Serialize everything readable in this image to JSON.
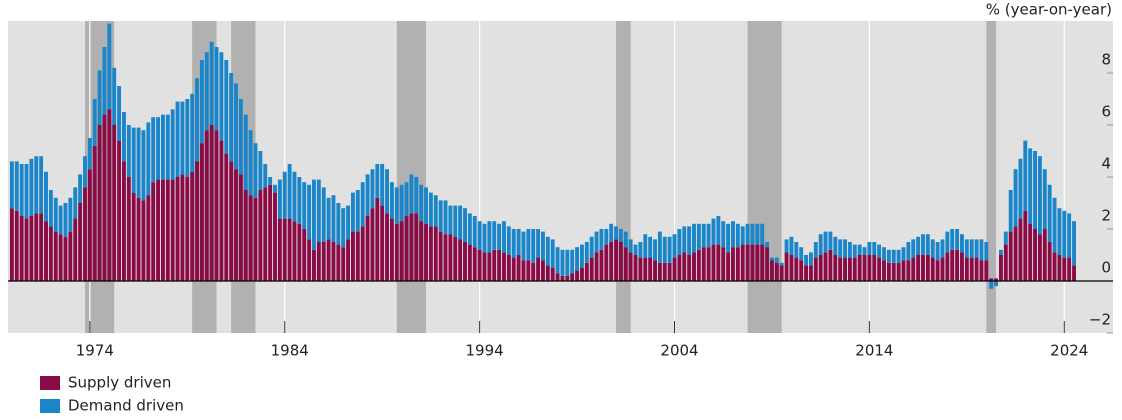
{
  "chart_data": {
    "type": "bar",
    "stacked": true,
    "y_label": "% (year-on-year)",
    "xlim": [
      1969.8,
      2026.5
    ],
    "xticks": [
      1974,
      1984,
      1994,
      2004,
      2014,
      2024
    ],
    "ylim": [
      -2,
      10
    ],
    "yticks": [
      {
        "value": -2,
        "label": "−2"
      },
      0,
      2,
      4,
      6,
      8
    ],
    "grid": true,
    "legend": "bottom-left",
    "shading_color": "#b1b1b1",
    "shading": [
      [
        1973.75,
        1975.25
      ],
      [
        1979.25,
        1980.5
      ],
      [
        1981.25,
        1982.5
      ],
      [
        1989.75,
        1991.25
      ],
      [
        2001.0,
        2001.75
      ],
      [
        2007.75,
        2009.5
      ],
      [
        2020.0,
        2020.5
      ]
    ],
    "x": [
      1970,
      1970.25,
      1970.5,
      1970.75,
      1971,
      1971.25,
      1971.5,
      1971.75,
      1972,
      1972.25,
      1972.5,
      1972.75,
      1973,
      1973.25,
      1973.5,
      1973.75,
      1974,
      1974.25,
      1974.5,
      1974.75,
      1975,
      1975.25,
      1975.5,
      1975.75,
      1976,
      1976.25,
      1976.5,
      1976.75,
      1977,
      1977.25,
      1977.5,
      1977.75,
      1978,
      1978.25,
      1978.5,
      1978.75,
      1979,
      1979.25,
      1979.5,
      1979.75,
      1980,
      1980.25,
      1980.5,
      1980.75,
      1981,
      1981.25,
      1981.5,
      1981.75,
      1982,
      1982.25,
      1982.5,
      1982.75,
      1983,
      1983.25,
      1983.5,
      1983.75,
      1984,
      1984.25,
      1984.5,
      1984.75,
      1985,
      1985.25,
      1985.5,
      1985.75,
      1986,
      1986.25,
      1986.5,
      1986.75,
      1987,
      1987.25,
      1987.5,
      1987.75,
      1988,
      1988.25,
      1988.5,
      1988.75,
      1989,
      1989.25,
      1989.5,
      1989.75,
      1990,
      1990.25,
      1990.5,
      1990.75,
      1991,
      1991.25,
      1991.5,
      1991.75,
      1992,
      1992.25,
      1992.5,
      1992.75,
      1993,
      1993.25,
      1993.5,
      1993.75,
      1994,
      1994.25,
      1994.5,
      1994.75,
      1995,
      1995.25,
      1995.5,
      1995.75,
      1996,
      1996.25,
      1996.5,
      1996.75,
      1997,
      1997.25,
      1997.5,
      1997.75,
      1998,
      1998.25,
      1998.5,
      1998.75,
      1999,
      1999.25,
      1999.5,
      1999.75,
      2000,
      2000.25,
      2000.5,
      2000.75,
      2001,
      2001.25,
      2001.5,
      2001.75,
      2002,
      2002.25,
      2002.5,
      2002.75,
      2003,
      2003.25,
      2003.5,
      2003.75,
      2004,
      2004.25,
      2004.5,
      2004.75,
      2005,
      2005.25,
      2005.5,
      2005.75,
      2006,
      2006.25,
      2006.5,
      2006.75,
      2007,
      2007.25,
      2007.5,
      2007.75,
      2008,
      2008.25,
      2008.5,
      2008.75,
      2009,
      2009.25,
      2009.5,
      2009.75,
      2010,
      2010.25,
      2010.5,
      2010.75,
      2011,
      2011.25,
      2011.5,
      2011.75,
      2012,
      2012.25,
      2012.5,
      2012.75,
      2013,
      2013.25,
      2013.5,
      2013.75,
      2014,
      2014.25,
      2014.5,
      2014.75,
      2015,
      2015.25,
      2015.5,
      2015.75,
      2016,
      2016.25,
      2016.5,
      2016.75,
      2017,
      2017.25,
      2017.5,
      2017.75,
      2018,
      2018.25,
      2018.5,
      2018.75,
      2019,
      2019.25,
      2019.5,
      2019.75,
      2020,
      2020.25,
      2020.5,
      2020.75,
      2021,
      2021.25,
      2021.5,
      2021.75,
      2022,
      2022.25,
      2022.5,
      2022.75,
      2023,
      2023.25,
      2023.5,
      2023.75,
      2024,
      2024.25,
      2024.5
    ],
    "series": [
      {
        "name": "Supply driven",
        "color": "#8a0b45",
        "values": [
          2.8,
          2.7,
          2.5,
          2.4,
          2.5,
          2.6,
          2.6,
          2.3,
          2.1,
          1.9,
          1.8,
          1.7,
          1.9,
          2.4,
          3.0,
          3.6,
          4.3,
          5.2,
          6.0,
          6.4,
          6.6,
          6.0,
          5.4,
          4.6,
          4.0,
          3.4,
          3.2,
          3.1,
          3.3,
          3.8,
          3.9,
          3.9,
          3.9,
          3.9,
          4.0,
          4.1,
          4.0,
          4.2,
          4.6,
          5.3,
          5.8,
          6.0,
          5.8,
          5.4,
          4.9,
          4.6,
          4.3,
          4.1,
          3.5,
          3.3,
          3.2,
          3.5,
          3.6,
          3.7,
          3.4,
          2.4,
          2.4,
          2.4,
          2.3,
          2.2,
          2.0,
          1.6,
          1.2,
          1.5,
          1.5,
          1.6,
          1.5,
          1.4,
          1.3,
          1.6,
          1.9,
          1.9,
          2.1,
          2.5,
          2.8,
          3.2,
          2.9,
          2.6,
          2.4,
          2.2,
          2.3,
          2.5,
          2.6,
          2.6,
          2.3,
          2.2,
          2.1,
          2.1,
          1.9,
          1.8,
          1.8,
          1.7,
          1.6,
          1.5,
          1.4,
          1.3,
          1.2,
          1.1,
          1.1,
          1.2,
          1.2,
          1.1,
          1.0,
          0.9,
          1.0,
          0.8,
          0.8,
          0.7,
          0.9,
          0.8,
          0.6,
          0.5,
          0.3,
          0.2,
          0.2,
          0.3,
          0.4,
          0.5,
          0.7,
          0.9,
          1.1,
          1.2,
          1.4,
          1.5,
          1.6,
          1.5,
          1.3,
          1.1,
          1.0,
          0.9,
          0.9,
          0.9,
          0.8,
          0.7,
          0.7,
          0.7,
          0.9,
          1.0,
          1.1,
          1.0,
          1.1,
          1.2,
          1.3,
          1.3,
          1.4,
          1.4,
          1.3,
          1.1,
          1.3,
          1.3,
          1.4,
          1.4,
          1.4,
          1.4,
          1.4,
          1.3,
          0.8,
          0.7,
          0.6,
          1.1,
          1.0,
          0.9,
          0.8,
          0.6,
          0.6,
          0.9,
          1.0,
          1.1,
          1.2,
          1.0,
          0.9,
          0.9,
          0.9,
          0.9,
          1.0,
          1.0,
          1.0,
          1.0,
          0.9,
          0.8,
          0.7,
          0.7,
          0.7,
          0.8,
          0.8,
          0.9,
          1.0,
          1.0,
          1.0,
          0.9,
          0.8,
          0.9,
          1.1,
          1.2,
          1.2,
          1.1,
          0.9,
          0.9,
          0.9,
          0.8,
          0.8,
          0.1,
          0.1,
          1.0,
          1.4,
          1.9,
          2.1,
          2.4,
          2.7,
          2.2,
          2.0,
          1.8,
          2.0,
          1.5,
          1.1,
          1.0,
          0.9,
          0.9,
          0.6
        ]
      },
      {
        "name": "Demand driven",
        "color": "#1a86c9",
        "values": [
          1.8,
          1.9,
          2.0,
          2.1,
          2.2,
          2.2,
          2.2,
          1.9,
          1.4,
          1.3,
          1.1,
          1.3,
          1.3,
          1.2,
          1.1,
          1.2,
          1.2,
          1.8,
          2.1,
          2.6,
          3.3,
          2.2,
          2.1,
          1.9,
          2.0,
          2.5,
          2.7,
          2.7,
          2.8,
          2.5,
          2.4,
          2.5,
          2.5,
          2.7,
          2.9,
          2.8,
          3.0,
          3.0,
          3.2,
          3.2,
          3.0,
          3.2,
          3.2,
          3.4,
          3.6,
          3.4,
          3.3,
          2.9,
          2.9,
          2.5,
          2.1,
          1.5,
          0.9,
          0.3,
          0.3,
          1.5,
          1.8,
          2.1,
          1.9,
          1.8,
          1.8,
          2.1,
          2.7,
          2.4,
          2.1,
          1.6,
          1.8,
          1.6,
          1.5,
          1.3,
          1.5,
          1.6,
          1.7,
          1.6,
          1.5,
          1.3,
          1.6,
          1.7,
          1.4,
          1.4,
          1.4,
          1.3,
          1.5,
          1.4,
          1.4,
          1.4,
          1.3,
          1.2,
          1.2,
          1.3,
          1.1,
          1.2,
          1.3,
          1.3,
          1.2,
          1.2,
          1.1,
          1.1,
          1.2,
          1.1,
          1.0,
          1.2,
          1.1,
          1.1,
          1.0,
          1.1,
          1.2,
          1.3,
          1.1,
          1.1,
          1.1,
          1.1,
          1.0,
          1.0,
          1.0,
          0.9,
          0.9,
          0.9,
          0.8,
          0.8,
          0.8,
          0.8,
          0.6,
          0.7,
          0.5,
          0.5,
          0.6,
          0.5,
          0.4,
          0.6,
          0.9,
          0.8,
          0.8,
          1.2,
          1.0,
          1.0,
          0.9,
          1.0,
          1.0,
          1.1,
          1.1,
          1.0,
          0.9,
          0.9,
          1.0,
          1.1,
          1.0,
          1.1,
          1.0,
          0.9,
          0.7,
          0.8,
          0.8,
          0.8,
          0.8,
          0.2,
          0.1,
          0.2,
          0.1,
          0.5,
          0.7,
          0.6,
          0.5,
          0.4,
          0.5,
          0.6,
          0.8,
          0.8,
          0.7,
          0.7,
          0.7,
          0.7,
          0.6,
          0.5,
          0.4,
          0.3,
          0.5,
          0.5,
          0.5,
          0.5,
          0.5,
          0.5,
          0.5,
          0.5,
          0.7,
          0.7,
          0.7,
          0.8,
          0.8,
          0.7,
          0.7,
          0.7,
          0.8,
          0.8,
          0.8,
          0.7,
          0.7,
          0.7,
          0.7,
          0.8,
          0.7,
          -0.3,
          -0.2,
          0.2,
          0.5,
          1.6,
          2.2,
          2.3,
          2.7,
          2.9,
          3.0,
          3.0,
          2.3,
          2.2,
          2.1,
          1.8,
          1.8,
          1.7,
          1.7
        ]
      }
    ]
  }
}
